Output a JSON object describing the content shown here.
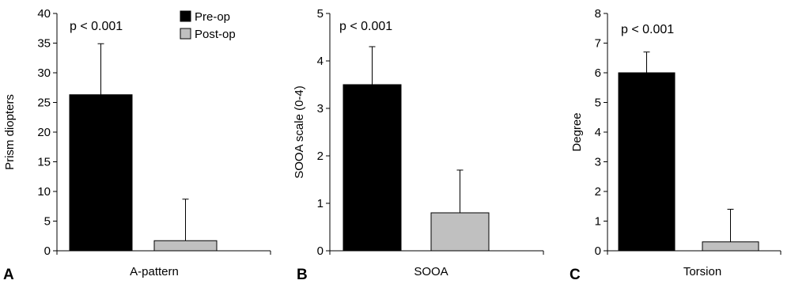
{
  "chart_data": [
    {
      "type": "bar",
      "panel": "A",
      "categories": [
        "A-pattern"
      ],
      "series": [
        {
          "name": "Pre-op",
          "color": "#000000",
          "values": [
            26.3
          ],
          "error": [
            8.6
          ]
        },
        {
          "name": "Post-op",
          "color": "#c0c0c0",
          "values": [
            1.7
          ],
          "error": [
            7.0
          ]
        }
      ],
      "ylabel": "Prism diopters",
      "ylim": [
        0,
        40
      ],
      "yticks": [
        "0",
        "5",
        "10",
        "15",
        "20",
        "25",
        "30",
        "35",
        "40"
      ],
      "annotation": "p < 0.001",
      "legend": [
        "Pre-op",
        "Post-op"
      ],
      "legend_position": "top-right",
      "grid": false
    },
    {
      "type": "bar",
      "panel": "B",
      "categories": [
        "SOOA"
      ],
      "series": [
        {
          "name": "Pre-op",
          "color": "#000000",
          "values": [
            3.5
          ],
          "error": [
            0.8
          ]
        },
        {
          "name": "Post-op",
          "color": "#c0c0c0",
          "values": [
            0.8
          ],
          "error": [
            0.9
          ]
        }
      ],
      "ylabel": "SOOA scale (0-4)",
      "ylim": [
        0,
        5
      ],
      "yticks": [
        "0",
        "1",
        "2",
        "3",
        "4",
        "5"
      ],
      "annotation": "p < 0.001",
      "grid": false
    },
    {
      "type": "bar",
      "panel": "C",
      "categories": [
        "Torsion"
      ],
      "series": [
        {
          "name": "Pre-op",
          "color": "#000000",
          "values": [
            6.0
          ],
          "error": [
            0.7
          ]
        },
        {
          "name": "Post-op",
          "color": "#c0c0c0",
          "values": [
            0.3
          ],
          "error": [
            1.1
          ]
        }
      ],
      "ylabel": "Degree",
      "ylim": [
        0,
        8
      ],
      "yticks": [
        "0",
        "1",
        "2",
        "3",
        "4",
        "5",
        "6",
        "7",
        "8"
      ],
      "annotation": "p < 0.001",
      "grid": false
    }
  ]
}
